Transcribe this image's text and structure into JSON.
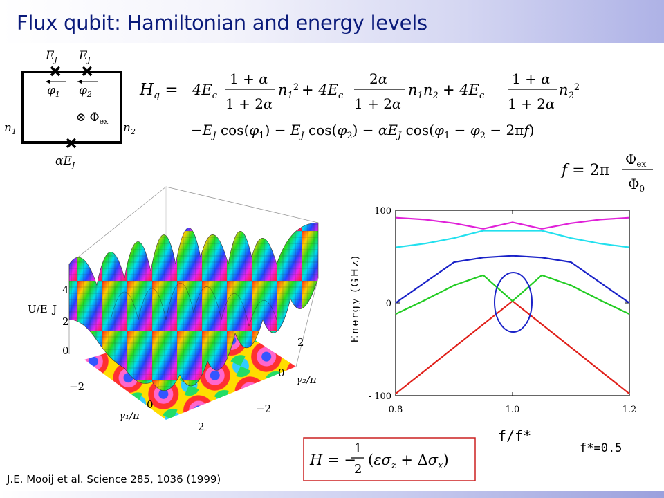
{
  "slide": {
    "title": "Flux qubit: Hamiltonian and energy levels",
    "reference": "J.E. Mooij et al. Science 285, 1036 (1999)"
  },
  "circuit": {
    "junction1": "E_J",
    "junction2": "E_J",
    "junction3": "αE_J",
    "phase1": "φ₁",
    "phase2": "φ₂",
    "node1": "n₁",
    "node2": "n₂",
    "flux": "⊗ Φex"
  },
  "equations": {
    "hq_lhs": "H_q =",
    "hq_line1": "4E_c (1+α)/(1+2α) n₁² + 4E_c 2α/(1+2α) n₁n₂ + 4E_c (1+α)/(1+2α) n₂²",
    "hq_line2": "−E_J cos(φ₁) − E_J cos(φ₂) − αE_J cos(φ₁ − φ₂ − 2πf)",
    "f_def": "f = 2π Φex/Φ0",
    "h_eff": "H = −(1/2)(εσ_z + Δσ_x)"
  },
  "surface_plot": {
    "zlabel": "U/E_J",
    "zticks": [
      "4",
      "2",
      "0"
    ],
    "x1label": "γ₁/π",
    "x1ticks": [
      "−2",
      "0",
      "2"
    ],
    "x2label": "γ₂/π",
    "x2ticks": [
      "2",
      "0",
      "−2"
    ]
  },
  "labels": {
    "xaxis": "f/f*",
    "fstar": "f*=0.5"
  },
  "chart_data": {
    "type": "line",
    "title": "",
    "xlabel": "f/f*",
    "ylabel": "Energy (GHz)",
    "xlim": [
      0.8,
      1.2
    ],
    "ylim": [
      -100,
      100
    ],
    "xticks": [
      "0.8",
      "1.0",
      "1.2"
    ],
    "yticks": [
      "100",
      "0",
      "- 100"
    ],
    "grid": false,
    "series": [
      {
        "color": "#e0201a",
        "x": [
          0.8,
          1.0,
          1.2
        ],
        "y": [
          -98,
          2,
          -98
        ]
      },
      {
        "color": "#22cc22",
        "x": [
          0.8,
          0.85,
          0.9,
          0.95,
          1.0,
          1.05,
          1.1,
          1.15,
          1.2
        ],
        "y": [
          -12,
          3,
          19,
          30,
          2,
          30,
          19,
          3,
          -12
        ]
      },
      {
        "color": "#1a22c8",
        "x": [
          0.8,
          0.85,
          0.9,
          0.95,
          1.0,
          1.05,
          1.1,
          1.15,
          1.2
        ],
        "y": [
          0,
          22,
          44,
          49,
          51,
          49,
          44,
          22,
          0
        ]
      },
      {
        "color": "#22e0ee",
        "x": [
          0.8,
          0.85,
          0.9,
          0.95,
          1.0,
          1.05,
          1.1,
          1.15,
          1.2
        ],
        "y": [
          60,
          64,
          70,
          78,
          78,
          78,
          70,
          64,
          60
        ]
      },
      {
        "color": "#e020d8",
        "x": [
          0.8,
          0.85,
          0.9,
          0.95,
          1.0,
          1.05,
          1.1,
          1.15,
          1.2
        ],
        "y": [
          92,
          90,
          86,
          80,
          87,
          80,
          86,
          90,
          92
        ]
      }
    ],
    "annotations": [
      "blue ellipse around anticrossing at f/f* = 1.0"
    ]
  }
}
